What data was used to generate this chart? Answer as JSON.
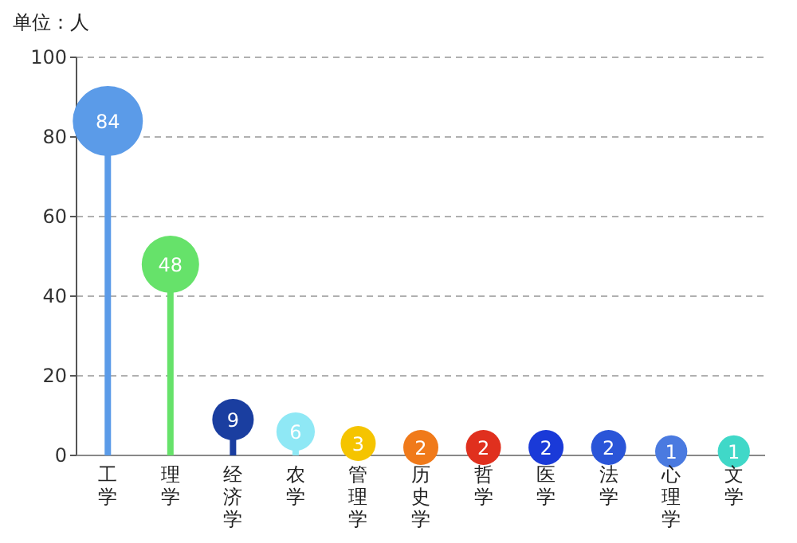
{
  "chart_data": {
    "type": "lollipop",
    "ylabel": "单位：人",
    "categories": [
      "工学",
      "理学",
      "经济学",
      "农学",
      "管理学",
      "历史学",
      "哲学",
      "医学",
      "法学",
      "心理学",
      "文学"
    ],
    "values": [
      84,
      48,
      9,
      6,
      3,
      2,
      2,
      2,
      2,
      1,
      1
    ],
    "sizes": [
      1,
      0.67,
      0.35,
      0.3,
      0.25,
      0.25,
      0.25,
      0.25,
      0.25,
      0.21,
      0.21
    ],
    "colors": [
      "#5b9be8",
      "#66e26a",
      "#1a3ea0",
      "#8fe8f5",
      "#f5c400",
      "#f07a1a",
      "#e0301e",
      "#1a3ad8",
      "#2a55d8",
      "#4a7ae0",
      "#40d8c8"
    ],
    "ylim": [
      0,
      100
    ],
    "yticks": [
      0,
      20,
      40,
      60,
      80,
      100
    ],
    "grid": "y",
    "data_labels": true
  }
}
